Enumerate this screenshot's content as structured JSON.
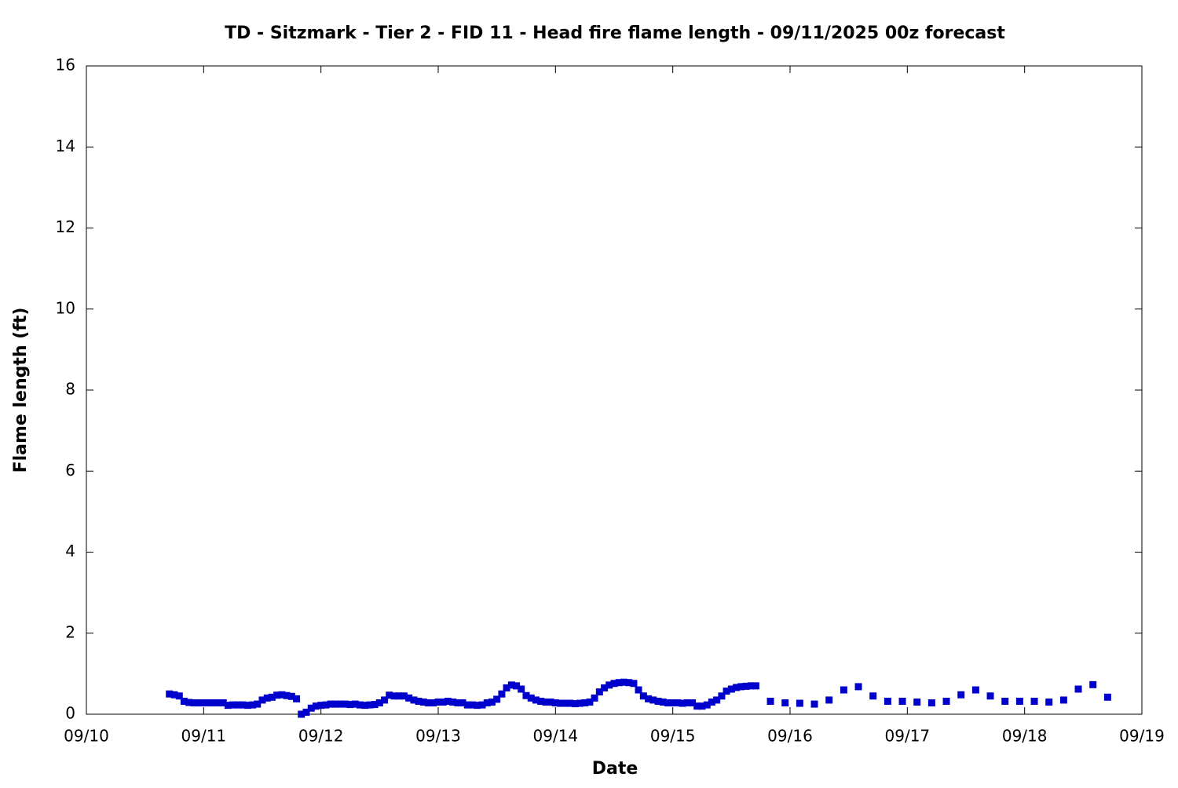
{
  "chart_data": {
    "type": "scatter",
    "title": "TD - Sitzmark - Tier 2 - FID 11 - Head fire flame length - 09/11/2025 00z forecast",
    "x_label": "Date",
    "y_label": "Flame length (ft)",
    "color": "#0000cc",
    "xlim": [
      0,
      9
    ],
    "xticks": [
      {
        "value": 0,
        "label": "09/10"
      },
      {
        "value": 1,
        "label": "09/11"
      },
      {
        "value": 2,
        "label": "09/12"
      },
      {
        "value": 3,
        "label": "09/13"
      },
      {
        "value": 4,
        "label": "09/14"
      },
      {
        "value": 5,
        "label": "09/15"
      },
      {
        "value": 6,
        "label": "09/16"
      },
      {
        "value": 7,
        "label": "09/17"
      },
      {
        "value": 8,
        "label": "09/18"
      },
      {
        "value": 9,
        "label": "09/19"
      }
    ],
    "ylim": [
      0,
      16
    ],
    "yticks": [
      0,
      2,
      4,
      6,
      8,
      10,
      12,
      14,
      16
    ],
    "x": [
      0.708,
      0.75,
      0.792,
      0.833,
      0.875,
      0.917,
      0.958,
      1,
      1.042,
      1.083,
      1.125,
      1.167,
      1.208,
      1.25,
      1.292,
      1.333,
      1.375,
      1.417,
      1.458,
      1.5,
      1.542,
      1.583,
      1.625,
      1.667,
      1.708,
      1.75,
      1.792,
      1.833,
      1.875,
      1.917,
      1.958,
      2,
      2.042,
      2.083,
      2.125,
      2.167,
      2.208,
      2.25,
      2.292,
      2.333,
      2.375,
      2.417,
      2.458,
      2.5,
      2.542,
      2.583,
      2.625,
      2.667,
      2.708,
      2.75,
      2.792,
      2.833,
      2.875,
      2.917,
      2.958,
      3,
      3.042,
      3.083,
      3.125,
      3.167,
      3.208,
      3.25,
      3.292,
      3.333,
      3.375,
      3.417,
      3.458,
      3.5,
      3.542,
      3.583,
      3.625,
      3.667,
      3.708,
      3.75,
      3.792,
      3.833,
      3.875,
      3.917,
      3.958,
      4,
      4.042,
      4.083,
      4.125,
      4.167,
      4.208,
      4.25,
      4.292,
      4.333,
      4.375,
      4.417,
      4.458,
      4.5,
      4.542,
      4.583,
      4.625,
      4.667,
      4.708,
      4.75,
      4.792,
      4.833,
      4.875,
      4.917,
      4.958,
      5,
      5.042,
      5.083,
      5.125,
      5.167,
      5.208,
      5.25,
      5.292,
      5.333,
      5.375,
      5.417,
      5.458,
      5.5,
      5.542,
      5.583,
      5.625,
      5.667,
      5.708,
      5.833,
      5.958,
      6.083,
      6.208,
      6.333,
      6.458,
      6.583,
      6.708,
      6.833,
      6.958,
      7.083,
      7.208,
      7.333,
      7.458,
      7.583,
      7.708,
      7.833,
      7.958,
      8.083,
      8.208,
      8.333,
      8.458,
      8.583,
      8.708
    ],
    "values": [
      0.5,
      0.48,
      0.45,
      0.32,
      0.29,
      0.28,
      0.28,
      0.28,
      0.28,
      0.28,
      0.28,
      0.28,
      0.22,
      0.23,
      0.23,
      0.23,
      0.22,
      0.23,
      0.25,
      0.35,
      0.4,
      0.42,
      0.47,
      0.48,
      0.46,
      0.44,
      0.38,
      0.0,
      0.05,
      0.15,
      0.2,
      0.22,
      0.23,
      0.25,
      0.25,
      0.25,
      0.25,
      0.24,
      0.25,
      0.23,
      0.22,
      0.23,
      0.24,
      0.28,
      0.35,
      0.47,
      0.45,
      0.45,
      0.45,
      0.4,
      0.35,
      0.32,
      0.3,
      0.28,
      0.28,
      0.3,
      0.3,
      0.32,
      0.3,
      0.28,
      0.28,
      0.23,
      0.23,
      0.22,
      0.23,
      0.28,
      0.3,
      0.37,
      0.5,
      0.65,
      0.72,
      0.7,
      0.62,
      0.46,
      0.4,
      0.35,
      0.32,
      0.3,
      0.3,
      0.28,
      0.27,
      0.27,
      0.27,
      0.26,
      0.27,
      0.28,
      0.3,
      0.4,
      0.55,
      0.65,
      0.72,
      0.76,
      0.78,
      0.79,
      0.78,
      0.76,
      0.6,
      0.45,
      0.38,
      0.35,
      0.32,
      0.3,
      0.28,
      0.28,
      0.28,
      0.27,
      0.28,
      0.28,
      0.2,
      0.2,
      0.23,
      0.3,
      0.35,
      0.45,
      0.57,
      0.62,
      0.66,
      0.68,
      0.69,
      0.7,
      0.7,
      0.32,
      0.28,
      0.27,
      0.25,
      0.35,
      0.6,
      0.68,
      0.45,
      0.32,
      0.32,
      0.3,
      0.28,
      0.32,
      0.48,
      0.6,
      0.45,
      0.32,
      0.32,
      0.32,
      0.3,
      0.35,
      0.62,
      0.73,
      0.42
    ]
  }
}
